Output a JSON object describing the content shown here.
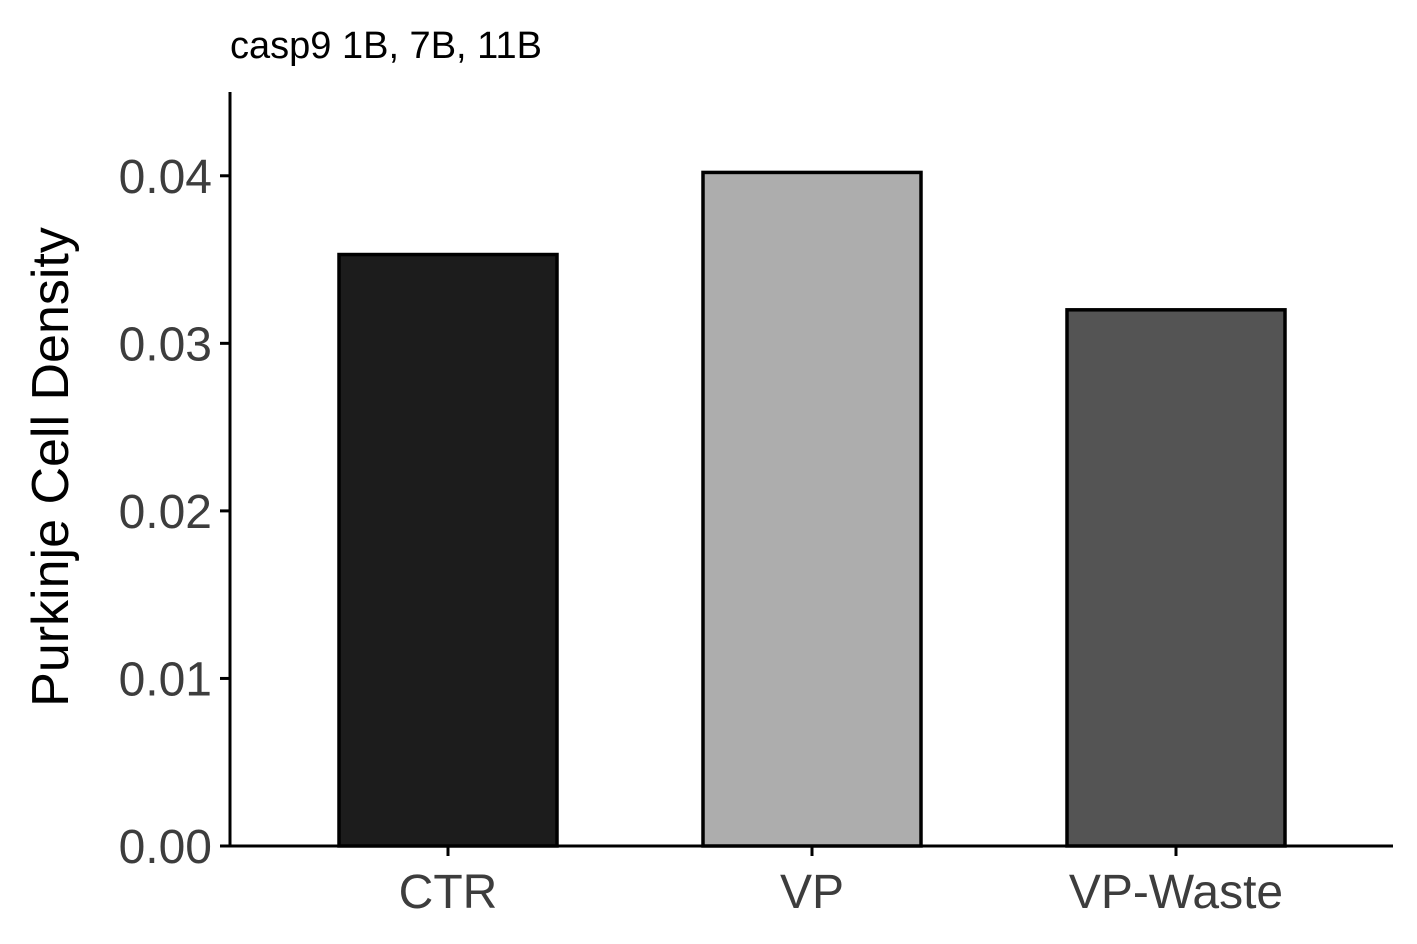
{
  "chart_data": {
    "type": "bar",
    "title": "casp9 1B, 7B, 11B",
    "xlabel": "",
    "ylabel": "Purkinje Cell Density",
    "categories": [
      "CTR",
      "VP",
      "VP-Waste"
    ],
    "values": [
      0.0353,
      0.0402,
      0.032
    ],
    "colors": [
      "#1c1c1c",
      "#adadad",
      "#545454"
    ],
    "ylim": [
      0,
      0.045
    ],
    "yticks": [
      0.0,
      0.01,
      0.02,
      0.03,
      0.04
    ],
    "ytick_labels": [
      "0.00",
      "0.01",
      "0.02",
      "0.03",
      "0.04"
    ],
    "grid": false,
    "legend": "none"
  }
}
